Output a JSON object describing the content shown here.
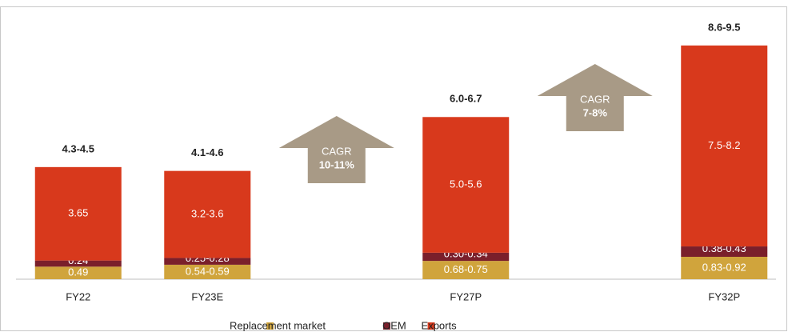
{
  "chart_data": {
    "type": "stacked_bar",
    "categories": [
      "FY22",
      "FY23E",
      null,
      "FY27P",
      null,
      "FY32P"
    ],
    "series": [
      {
        "name": "Replacement market",
        "color": "#d0a43c",
        "values": [
          0.49,
          0.565,
          null,
          0.715,
          null,
          0.875
        ],
        "value_labels": [
          "0.49",
          "0.54-0.59",
          null,
          "0.68-0.75",
          null,
          "0.83-0.92"
        ]
      },
      {
        "name": "OEM",
        "color": "#7a1f2b",
        "values": [
          0.24,
          0.265,
          null,
          0.32,
          null,
          0.405
        ],
        "value_labels": [
          "0.24",
          "0.25-0.28",
          null,
          "0.30-0.34",
          null,
          "0.38-0.43"
        ]
      },
      {
        "name": "Exports",
        "color": "#d8391c",
        "values": [
          3.65,
          3.4,
          null,
          5.3,
          null,
          7.85
        ],
        "value_labels": [
          "3.65",
          "3.2-3.6",
          null,
          "5.0-5.6",
          null,
          "7.5-8.2"
        ]
      }
    ],
    "total_labels": [
      "4.3-4.5",
      "4.1-4.6",
      null,
      "6.0-6.7",
      null,
      "8.6-9.5"
    ],
    "annotations": [
      {
        "text": "CAGR",
        "value": "10-11%"
      },
      {
        "text": "CAGR",
        "value": "7-8%"
      }
    ],
    "ylim": [
      0,
      10
    ]
  }
}
